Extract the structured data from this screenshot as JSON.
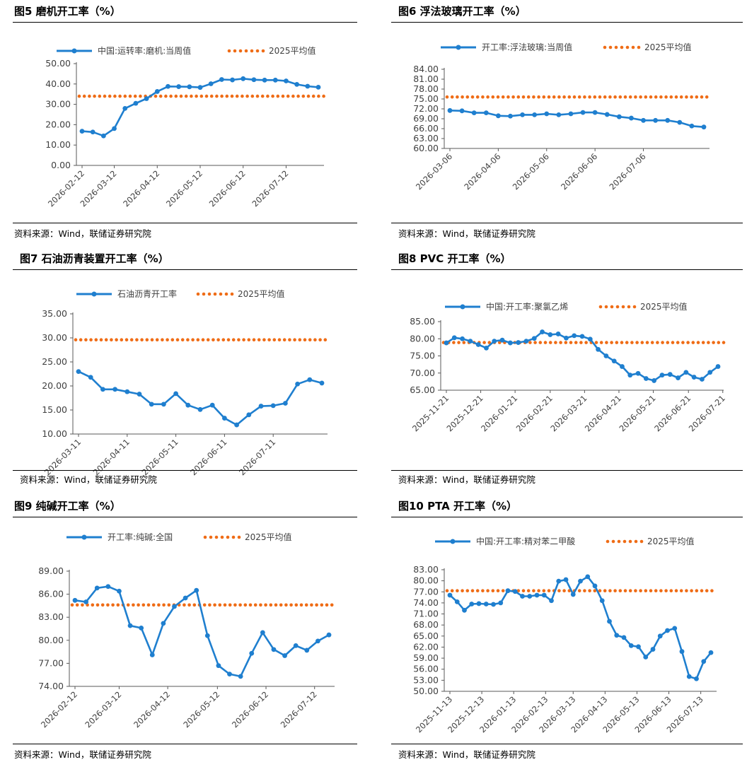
{
  "colors": {
    "series": "#1f7fcf",
    "avg": "#ef6c16",
    "axis": "#595959",
    "text": "#404040"
  },
  "source_text": "资料来源：Wind，联储证券研究院",
  "panels": [
    {
      "id": "p5",
      "title": "图5  磨机开工率（%）",
      "chart_data": {
        "type": "line",
        "series": [
          {
            "name": "中国:运转率:磨机:当周值",
            "values": [
              16.8,
              16.4,
              14.5,
              18.1,
              28.0,
              30.5,
              32.8,
              36.3,
              38.8,
              38.7,
              38.6,
              38.3,
              40.1,
              42.2,
              42.0,
              42.6,
              42.1,
              41.9,
              41.9,
              41.5,
              39.8,
              38.9,
              38.4
            ]
          },
          {
            "name": "2025平均值",
            "values": [
              34.0
            ],
            "style": "dotted-constant"
          }
        ],
        "ylim": [
          0,
          50
        ],
        "yticks": [
          "0.00",
          "10.00",
          "20.00",
          "30.00",
          "40.00",
          "50.00"
        ],
        "x_labels": [
          "2026-02-12",
          "2026-03-12",
          "2026-04-12",
          "2026-05-12",
          "2026-06-12",
          "2026-07-12"
        ],
        "x_label_positions": [
          0,
          3,
          7,
          11,
          15,
          19
        ],
        "xlabel": "",
        "ylabel": ""
      }
    },
    {
      "id": "p6",
      "title": "图6  浮法玻璃开工率（%）",
      "chart_data": {
        "type": "line",
        "series": [
          {
            "name": "开工率:浮法玻璃:当周值",
            "values": [
              71.5,
              71.4,
              70.8,
              70.8,
              69.9,
              69.8,
              70.2,
              70.2,
              70.5,
              70.2,
              70.5,
              70.9,
              70.9,
              70.3,
              69.6,
              69.2,
              68.5,
              68.5,
              68.5,
              67.9,
              66.8,
              66.5
            ]
          },
          {
            "name": "2025平均值",
            "values": [
              75.6
            ],
            "style": "dotted-constant"
          }
        ],
        "ylim": [
          60,
          84
        ],
        "yticks": [
          "60.00",
          "63.00",
          "66.00",
          "69.00",
          "72.00",
          "75.00",
          "78.00",
          "81.00",
          "84.00"
        ],
        "x_labels": [
          "2026-03-06",
          "2026-04-06",
          "2026-05-06",
          "2026-06-06",
          "2026-07-06"
        ],
        "x_label_positions": [
          0,
          4,
          8,
          12,
          16
        ],
        "xlabel": "",
        "ylabel": ""
      }
    },
    {
      "id": "p7",
      "title": "图7  石油沥青装置开工率（%）",
      "chart_data": {
        "type": "line",
        "series": [
          {
            "name": "石油沥青开工率",
            "values": [
              23.0,
              21.8,
              19.3,
              19.3,
              18.8,
              18.3,
              16.2,
              16.2,
              18.4,
              16.0,
              15.1,
              16.0,
              13.3,
              11.9,
              14.0,
              15.8,
              15.9,
              16.4,
              20.4,
              21.3,
              20.6
            ]
          },
          {
            "name": "2025平均值",
            "values": [
              29.6
            ],
            "style": "dotted-constant"
          }
        ],
        "ylim": [
          10,
          35
        ],
        "yticks": [
          "10.00",
          "15.00",
          "20.00",
          "25.00",
          "30.00",
          "35.00"
        ],
        "x_labels": [
          "2026-03-11",
          "2026-04-11",
          "2026-05-11",
          "2026-06-11",
          "2026-07-11"
        ],
        "x_label_positions": [
          0,
          4,
          8,
          12,
          16
        ],
        "xlabel": "",
        "ylabel": ""
      }
    },
    {
      "id": "p8",
      "title": "图8  PVC 开工率（%）",
      "chart_data": {
        "type": "line",
        "series": [
          {
            "name": "中国:开工率:聚氯乙烯",
            "values": [
              78.8,
              80.3,
              80.0,
              79.3,
              78.3,
              77.3,
              79.3,
              79.6,
              78.8,
              78.9,
              79.3,
              80.1,
              82.0,
              81.2,
              81.4,
              80.2,
              80.9,
              80.7,
              79.9,
              76.9,
              75.0,
              73.5,
              71.9,
              69.4,
              69.9,
              68.4,
              67.8,
              69.4,
              69.6,
              68.6,
              70.2,
              68.8,
              68.2,
              70.2,
              71.9
            ]
          },
          {
            "name": "2025平均值",
            "values": [
              78.9
            ],
            "style": "dotted-constant"
          }
        ],
        "ylim": [
          65,
          85
        ],
        "yticks": [
          "65.00",
          "70.00",
          "75.00",
          "80.00",
          "85.00"
        ],
        "x_labels": [
          "2025-11-21",
          "2025-12-21",
          "2026-01-21",
          "2026-02-21",
          "2026-03-21",
          "2026-04-21",
          "2026-05-21",
          "2026-06-21",
          "2026-07-21"
        ],
        "x_label_positions": [
          0,
          4.3,
          8.6,
          13,
          17.3,
          21.6,
          25.9,
          30.3,
          34.6
        ],
        "xlabel": "",
        "ylabel": ""
      }
    },
    {
      "id": "p9",
      "title": "图9  纯碱开工率（%）",
      "chart_data": {
        "type": "line",
        "series": [
          {
            "name": "开工率:纯碱:全国",
            "values": [
              85.2,
              85.0,
              86.8,
              87.0,
              86.4,
              81.9,
              81.6,
              78.1,
              82.2,
              84.4,
              85.5,
              86.5,
              80.6,
              76.7,
              75.6,
              75.3,
              78.3,
              81.0,
              78.8,
              78.0,
              79.3,
              78.7,
              79.9,
              80.7
            ]
          },
          {
            "name": "2025平均值",
            "values": [
              84.6
            ],
            "style": "dotted-constant"
          }
        ],
        "ylim": [
          74,
          89
        ],
        "yticks": [
          "74.00",
          "77.00",
          "80.00",
          "83.00",
          "86.00",
          "89.00"
        ],
        "x_labels": [
          "2026-02-12",
          "2026-03-12",
          "2026-04-12",
          "2026-05-12",
          "2026-06-12",
          "2026-07-12"
        ],
        "x_label_positions": [
          0,
          4,
          8.4,
          12.9,
          17.3,
          21.7
        ],
        "xlabel": "",
        "ylabel": ""
      }
    },
    {
      "id": "p10",
      "title": "图10 PTA 开工率（%）",
      "chart_data": {
        "type": "line",
        "series": [
          {
            "name": "中国:开工率:精对苯二甲酸",
            "values": [
              76.1,
              74.3,
              72.0,
              73.7,
              73.8,
              73.7,
              73.6,
              74.0,
              77.3,
              77.1,
              75.8,
              75.8,
              76.1,
              76.1,
              74.6,
              79.9,
              80.3,
              76.3,
              79.9,
              81.1,
              78.6,
              74.6,
              69.0,
              65.2,
              64.6,
              62.4,
              62.1,
              59.3,
              61.4,
              65.0,
              66.5,
              67.1,
              60.8,
              54.0,
              53.4,
              58.1,
              60.5
            ]
          },
          {
            "name": "2025平均值",
            "values": [
              77.3
            ],
            "style": "dotted-constant"
          }
        ],
        "ylim": [
          50,
          83
        ],
        "yticks": [
          "50.00",
          "53.00",
          "56.00",
          "59.00",
          "62.00",
          "65.00",
          "68.00",
          "71.00",
          "74.00",
          "77.00",
          "80.00",
          "83.00"
        ],
        "x_labels": [
          "2025-11-13",
          "2025-12-13",
          "2026-01-13",
          "2026-02-13",
          "2026-03-13",
          "2026-04-13",
          "2026-05-13",
          "2026-06-13",
          "2026-07-13"
        ],
        "x_label_positions": [
          0,
          4.4,
          8.8,
          13.2,
          17,
          21.4,
          25.8,
          30.2,
          34.6
        ],
        "xlabel": "",
        "ylabel": ""
      }
    }
  ]
}
